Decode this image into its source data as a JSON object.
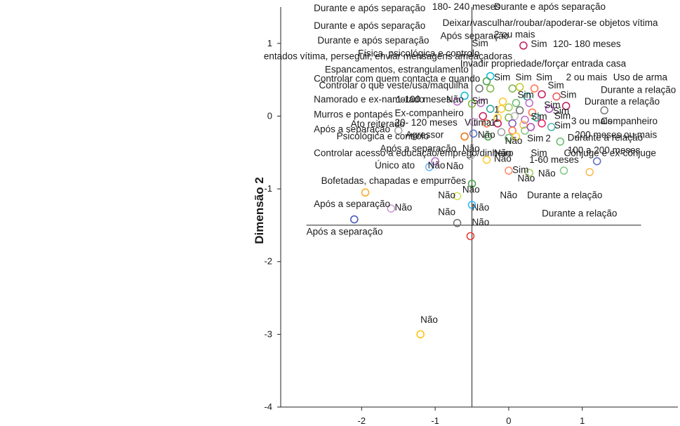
{
  "chart_data": {
    "type": "scatter",
    "title": "",
    "xlabel": "",
    "ylabel": "Dimensão 2",
    "xlim": [
      -3.1,
      2.3
    ],
    "ylim": [
      -4,
      1.5
    ],
    "xticks": [
      "-2",
      "-1",
      "0",
      "1"
    ],
    "yticks": [
      "1",
      "0",
      "-1",
      "-2",
      "-3",
      "-4"
    ],
    "grid": false,
    "reference_lines": {
      "x": -0.5,
      "y": -1.5,
      "x_from": -2.75,
      "x_to": 1.8
    },
    "points": [
      {
        "x": 0.2,
        "y": 0.97,
        "c": "#c2185b"
      },
      {
        "x": -0.25,
        "y": 0.55,
        "c": "#00bcd4"
      },
      {
        "x": -0.3,
        "y": 0.48,
        "c": "#43a047"
      },
      {
        "x": -0.4,
        "y": 0.38,
        "c": "#6d6d6d"
      },
      {
        "x": -0.25,
        "y": 0.38,
        "c": "#7cb342"
      },
      {
        "x": 0.05,
        "y": 0.38,
        "c": "#7cb342"
      },
      {
        "x": 0.15,
        "y": 0.4,
        "c": "#c0ca33"
      },
      {
        "x": 0.35,
        "y": 0.38,
        "c": "#ff7043"
      },
      {
        "x": -0.6,
        "y": 0.28,
        "c": "#00bcd4"
      },
      {
        "x": -0.7,
        "y": 0.2,
        "c": "#ba68c8"
      },
      {
        "x": -0.5,
        "y": 0.17,
        "c": "#7cb342"
      },
      {
        "x": -0.38,
        "y": 0.18,
        "c": "#ba68c8"
      },
      {
        "x": 0.25,
        "y": 0.27,
        "c": "#26a69a"
      },
      {
        "x": 0.45,
        "y": 0.3,
        "c": "#c2185b"
      },
      {
        "x": 0.65,
        "y": 0.27,
        "c": "#ef5350"
      },
      {
        "x": 0.78,
        "y": 0.14,
        "c": "#c2185b"
      },
      {
        "x": 1.3,
        "y": 0.08,
        "c": "#7a7a7a"
      },
      {
        "x": -0.08,
        "y": 0.2,
        "c": "#ffca28"
      },
      {
        "x": 0.1,
        "y": 0.18,
        "c": "#66bb6a"
      },
      {
        "x": 0.28,
        "y": 0.18,
        "c": "#ba68c8"
      },
      {
        "x": -0.25,
        "y": 0.1,
        "c": "#26a69a"
      },
      {
        "x": -0.1,
        "y": 0.1,
        "c": "#ffca28"
      },
      {
        "x": 0.0,
        "y": 0.12,
        "c": "#9ccc65"
      },
      {
        "x": 0.15,
        "y": 0.08,
        "c": "#6d6d6d"
      },
      {
        "x": 0.32,
        "y": 0.05,
        "c": "#ff7043"
      },
      {
        "x": 0.55,
        "y": 0.1,
        "c": "#ab47bc"
      },
      {
        "x": -0.35,
        "y": 0.0,
        "c": "#c2185b"
      },
      {
        "x": -0.15,
        "y": -0.02,
        "c": "#ffca28"
      },
      {
        "x": 0.0,
        "y": -0.02,
        "c": "#7cb342"
      },
      {
        "x": 0.08,
        "y": 0.0,
        "c": "#bdbdbd"
      },
      {
        "x": 0.22,
        "y": -0.05,
        "c": "#ba68c8"
      },
      {
        "x": 0.38,
        "y": -0.02,
        "c": "#26a69a"
      },
      {
        "x": -0.48,
        "y": -0.08,
        "c": "#ce93d8"
      },
      {
        "x": -0.3,
        "y": -0.1,
        "c": "#ff7043"
      },
      {
        "x": -0.15,
        "y": -0.1,
        "c": "#c2185b"
      },
      {
        "x": 0.05,
        "y": -0.1,
        "c": "#7e57c2"
      },
      {
        "x": 0.2,
        "y": -0.12,
        "c": "#ffb74d"
      },
      {
        "x": 0.45,
        "y": -0.1,
        "c": "#e91e63"
      },
      {
        "x": 0.58,
        "y": -0.15,
        "c": "#4db6ac"
      },
      {
        "x": -0.1,
        "y": -0.22,
        "c": "#9e9e9e"
      },
      {
        "x": 0.05,
        "y": -0.2,
        "c": "#ff7043"
      },
      {
        "x": 0.22,
        "y": -0.2,
        "c": "#81c784"
      },
      {
        "x": 0.3,
        "y": -0.15,
        "c": "#ab47bc"
      },
      {
        "x": -1.5,
        "y": -0.2,
        "c": "#9e9e9e"
      },
      {
        "x": -0.6,
        "y": -0.28,
        "c": "#ef6c00"
      },
      {
        "x": -0.48,
        "y": -0.24,
        "c": "#5c6bc0"
      },
      {
        "x": -0.28,
        "y": -0.28,
        "c": "#43a047"
      },
      {
        "x": 0.0,
        "y": -0.3,
        "c": "#66bb6a"
      },
      {
        "x": 0.1,
        "y": -0.28,
        "c": "#ffca28"
      },
      {
        "x": 0.7,
        "y": -0.35,
        "c": "#66bb6a"
      },
      {
        "x": 1.2,
        "y": -0.62,
        "c": "#5c6bc0"
      },
      {
        "x": -1.0,
        "y": -0.62,
        "c": "#ba68c8"
      },
      {
        "x": -1.08,
        "y": -0.7,
        "c": "#64b5f6"
      },
      {
        "x": -0.52,
        "y": -0.55,
        "c": "#bdbdbd"
      },
      {
        "x": -0.3,
        "y": -0.6,
        "c": "#ffca28"
      },
      {
        "x": 0.0,
        "y": -0.75,
        "c": "#ff8a65"
      },
      {
        "x": 0.28,
        "y": -0.78,
        "c": "#9ccc65"
      },
      {
        "x": 0.75,
        "y": -0.75,
        "c": "#81c784"
      },
      {
        "x": 1.1,
        "y": -0.77,
        "c": "#ffb74d"
      },
      {
        "x": -0.5,
        "y": -0.93,
        "c": "#43a047"
      },
      {
        "x": -0.7,
        "y": -1.1,
        "c": "#d4e157"
      },
      {
        "x": -1.95,
        "y": -1.05,
        "c": "#ffa726"
      },
      {
        "x": -1.6,
        "y": -1.27,
        "c": "#ce93d8"
      },
      {
        "x": -0.5,
        "y": -1.22,
        "c": "#29b6f6"
      },
      {
        "x": -2.1,
        "y": -1.42,
        "c": "#3f51b5"
      },
      {
        "x": -0.7,
        "y": -1.47,
        "c": "#6d6d6d"
      },
      {
        "x": -0.52,
        "y": -1.65,
        "c": "#e53935"
      },
      {
        "x": -1.2,
        "y": -3.0,
        "c": "#ffc107"
      }
    ],
    "labels": [
      {
        "text": "Durante e após separação",
        "x": -2.65,
        "y": 1.44
      },
      {
        "text": "180- 240 meses",
        "x": -1.04,
        "y": 1.46
      },
      {
        "text": "Durante e após separação",
        "x": -0.2,
        "y": 1.46
      },
      {
        "text": "Durante e após separação",
        "x": -2.65,
        "y": 1.2
      },
      {
        "text": "Deixar/vasculhar/roubar/apoderar-se objetos vítima",
        "x": -0.9,
        "y": 1.24
      },
      {
        "text": "Durante e após separação",
        "x": -2.6,
        "y": 1.0
      },
      {
        "text": "Após separação",
        "x": -0.93,
        "y": 1.06
      },
      {
        "text": "2 ou mais",
        "x": -0.2,
        "y": 1.08
      },
      {
        "text": "entados vítima, perseguir, enviar mensagens ameaçadoras",
        "x": -3.33,
        "y": 0.78
      },
      {
        "text": "Sim",
        "x": -0.5,
        "y": 0.96
      },
      {
        "text": "Sim",
        "x": 0.3,
        "y": 0.95
      },
      {
        "text": "120- 180 meses",
        "x": 0.6,
        "y": 0.95
      },
      {
        "text": "Física, psicológica e controlo",
        "x": -2.05,
        "y": 0.82
      },
      {
        "text": "Espancamentos, estrangulamento",
        "x": -2.5,
        "y": 0.6
      },
      {
        "text": "Invadir propriedade/forçar entrada casa",
        "x": -0.66,
        "y": 0.68
      },
      {
        "text": "Controlar com quem contacta e quando",
        "x": -2.65,
        "y": 0.47
      },
      {
        "text": "Sim",
        "x": -0.2,
        "y": 0.49
      },
      {
        "text": "Sim",
        "x": 0.09,
        "y": 0.49
      },
      {
        "text": "Sim",
        "x": 0.37,
        "y": 0.49
      },
      {
        "text": "2 ou mais",
        "x": 0.78,
        "y": 0.49
      },
      {
        "text": "Uso de arma",
        "x": 1.42,
        "y": 0.49
      },
      {
        "text": "Controlar o que veste/usa/maquilha",
        "x": -2.58,
        "y": 0.38
      },
      {
        "text": "Sim",
        "x": 0.53,
        "y": 0.38
      },
      {
        "text": "Durante a relação",
        "x": 1.25,
        "y": 0.32
      },
      {
        "text": "Sim",
        "x": 0.12,
        "y": 0.25
      },
      {
        "text": "Sim",
        "x": 0.7,
        "y": 0.25
      },
      {
        "text": "Namorado e ex-namorado",
        "x": -2.65,
        "y": 0.19
      },
      {
        "text": "1-100 meses",
        "x": -1.53,
        "y": 0.19
      },
      {
        "text": "Não",
        "x": -0.85,
        "y": 0.19
      },
      {
        "text": "Sim",
        "x": -0.5,
        "y": 0.17
      },
      {
        "text": "Durante a relação",
        "x": 1.03,
        "y": 0.16
      },
      {
        "text": "Sim",
        "x": 0.48,
        "y": 0.11
      },
      {
        "text": "Sim",
        "x": 0.6,
        "y": 0.03
      },
      {
        "text": "Murros e pontapés",
        "x": -2.65,
        "y": -0.02
      },
      {
        "text": "Ex-companheiro",
        "x": -1.55,
        "y": 0.0
      },
      {
        "text": "Sim",
        "x": 0.3,
        "y": -0.05
      },
      {
        "text": "Sim",
        "x": 0.62,
        "y": -0.04
      },
      {
        "text": "1",
        "x": -0.2,
        "y": 0.05
      },
      {
        "text": "Ato reiterado",
        "x": -2.15,
        "y": -0.15
      },
      {
        "text": "20- 120 meses",
        "x": -1.55,
        "y": -0.13
      },
      {
        "text": "Vítima",
        "x": -0.6,
        "y": -0.13
      },
      {
        "text": "1",
        "x": -0.25,
        "y": -0.13
      },
      {
        "text": "1",
        "x": -0.2,
        "y": -0.08
      },
      {
        "text": "3 ou mais",
        "x": 0.85,
        "y": -0.11
      },
      {
        "text": "Companheiro",
        "x": 1.25,
        "y": -0.11
      },
      {
        "text": "Sim",
        "x": 0.62,
        "y": -0.17
      },
      {
        "text": "Após a separação",
        "x": -2.65,
        "y": -0.22
      },
      {
        "text": "Psicológica e controlo",
        "x": -2.34,
        "y": -0.32
      },
      {
        "text": "Agressor",
        "x": -1.4,
        "y": -0.3
      },
      {
        "text": "Não",
        "x": -0.42,
        "y": -0.3
      },
      {
        "text": "Não",
        "x": -0.05,
        "y": -0.38
      },
      {
        "text": "Sim",
        "x": 0.25,
        "y": -0.35
      },
      {
        "text": "2",
        "x": 0.5,
        "y": -0.35
      },
      {
        "text": "Durante a relação",
        "x": 0.8,
        "y": -0.34
      },
      {
        "text": "200 meses ou mais",
        "x": 0.9,
        "y": -0.3
      },
      {
        "text": "Controlar acesso a educação/emprego/dinheiro",
        "x": -2.65,
        "y": -0.55
      },
      {
        "text": "Após a separação",
        "x": -1.75,
        "y": -0.49
      },
      {
        "text": "Não",
        "x": -0.63,
        "y": -0.49
      },
      {
        "text": "Sim",
        "x": 0.3,
        "y": -0.55
      },
      {
        "text": "Não",
        "x": -0.2,
        "y": -0.55
      },
      {
        "text": "100 a 200 meses",
        "x": 0.8,
        "y": -0.51
      },
      {
        "text": "Cônjuge e ex-cônjuge",
        "x": 0.75,
        "y": -0.55
      },
      {
        "text": "Não",
        "x": -0.2,
        "y": -0.63
      },
      {
        "text": "1-60 meses",
        "x": 0.28,
        "y": -0.64
      },
      {
        "text": "Único ato",
        "x": -1.82,
        "y": -0.72
      },
      {
        "text": "Não",
        "x": -1.1,
        "y": -0.72
      },
      {
        "text": "Não",
        "x": -0.85,
        "y": -0.73
      },
      {
        "text": "Sim",
        "x": 0.05,
        "y": -0.78
      },
      {
        "text": "Não",
        "x": 0.4,
        "y": -0.83
      },
      {
        "text": "Não",
        "x": 0.12,
        "y": -0.9
      },
      {
        "text": "Bofetadas, chapadas e empurrões",
        "x": -2.55,
        "y": -0.93
      },
      {
        "text": "Não",
        "x": -0.63,
        "y": -1.05
      },
      {
        "text": "Não",
        "x": -0.96,
        "y": -1.13
      },
      {
        "text": "Não",
        "x": -0.12,
        "y": -1.13
      },
      {
        "text": "Durante a relação",
        "x": 0.25,
        "y": -1.13
      },
      {
        "text": "Após a separação",
        "x": -2.65,
        "y": -1.25
      },
      {
        "text": "Não",
        "x": -1.55,
        "y": -1.3
      },
      {
        "text": "Não",
        "x": -0.5,
        "y": -1.3
      },
      {
        "text": "Não",
        "x": -0.96,
        "y": -1.36
      },
      {
        "text": "Durante a relação",
        "x": 0.45,
        "y": -1.38
      },
      {
        "text": "Não",
        "x": -0.5,
        "y": -1.5
      },
      {
        "text": "Após a separação",
        "x": -2.75,
        "y": -1.63
      },
      {
        "text": "Não",
        "x": -1.2,
        "y": -2.84
      }
    ]
  }
}
